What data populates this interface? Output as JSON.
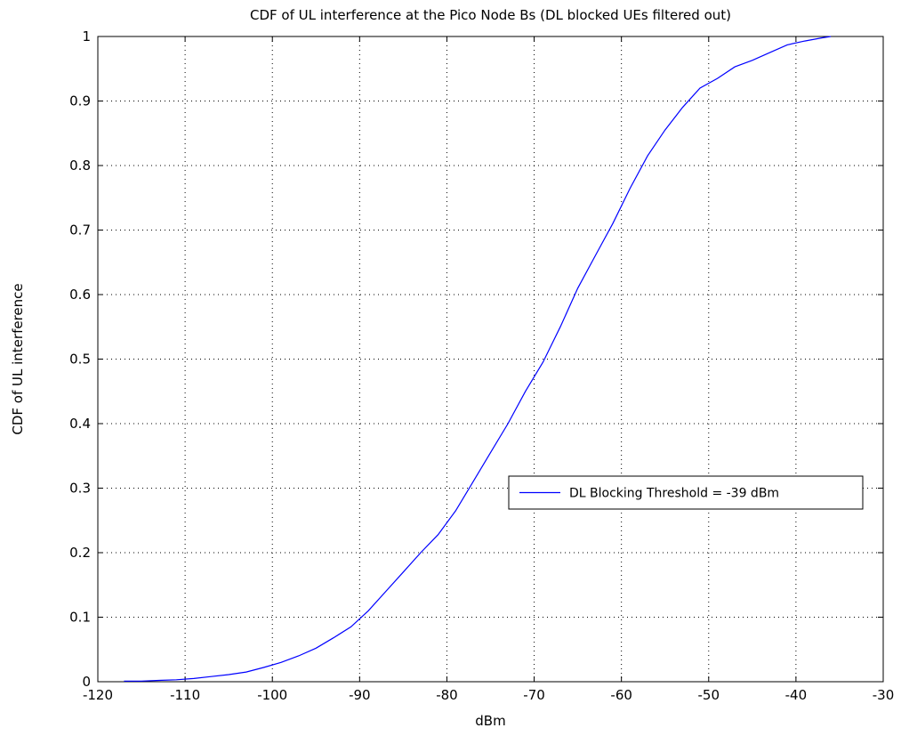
{
  "chart_data": {
    "type": "line",
    "title": "CDF of UL interference at the Pico Node Bs (DL blocked UEs filtered out)",
    "xlabel": "dBm",
    "ylabel": "CDF of UL interference",
    "xlim": [
      -120,
      -30
    ],
    "ylim": [
      0,
      1
    ],
    "x_ticks": [
      -120,
      -110,
      -100,
      -90,
      -80,
      -70,
      -60,
      -50,
      -40,
      -30
    ],
    "y_ticks": [
      0,
      0.1,
      0.2,
      0.3,
      0.4,
      0.5,
      0.6,
      0.7,
      0.8,
      0.9,
      1
    ],
    "x_tick_labels": [
      "-120",
      "-110",
      "-100",
      "-90",
      "-80",
      "-70",
      "-60",
      "-50",
      "-40",
      "-30"
    ],
    "y_tick_labels": [
      "0",
      "0.1",
      "0.2",
      "0.3",
      "0.4",
      "0.5",
      "0.6",
      "0.7",
      "0.8",
      "0.9",
      "1"
    ],
    "grid": true,
    "legend_position": "center-right",
    "series": [
      {
        "name": "DL Blocking Threshold = -39 dBm",
        "color": "#0000ff",
        "x": [
          -117,
          -115,
          -113,
          -111,
          -109,
          -107,
          -105,
          -103,
          -101,
          -99,
          -97,
          -95,
          -93,
          -91,
          -89,
          -87,
          -85,
          -83,
          -81,
          -79,
          -77,
          -75,
          -73,
          -71,
          -69,
          -67,
          -65,
          -63,
          -61,
          -59,
          -57,
          -55,
          -53,
          -51,
          -49,
          -47,
          -45,
          -43,
          -41,
          -39,
          -37,
          -36
        ],
        "y": [
          0.001,
          0.001,
          0.002,
          0.003,
          0.005,
          0.008,
          0.011,
          0.015,
          0.022,
          0.03,
          0.04,
          0.052,
          0.068,
          0.085,
          0.11,
          0.14,
          0.17,
          0.2,
          0.228,
          0.265,
          0.31,
          0.355,
          0.4,
          0.45,
          0.495,
          0.55,
          0.61,
          0.66,
          0.71,
          0.765,
          0.815,
          0.855,
          0.89,
          0.92,
          0.935,
          0.953,
          0.963,
          0.975,
          0.987,
          0.993,
          0.998,
          1.0
        ]
      }
    ]
  }
}
